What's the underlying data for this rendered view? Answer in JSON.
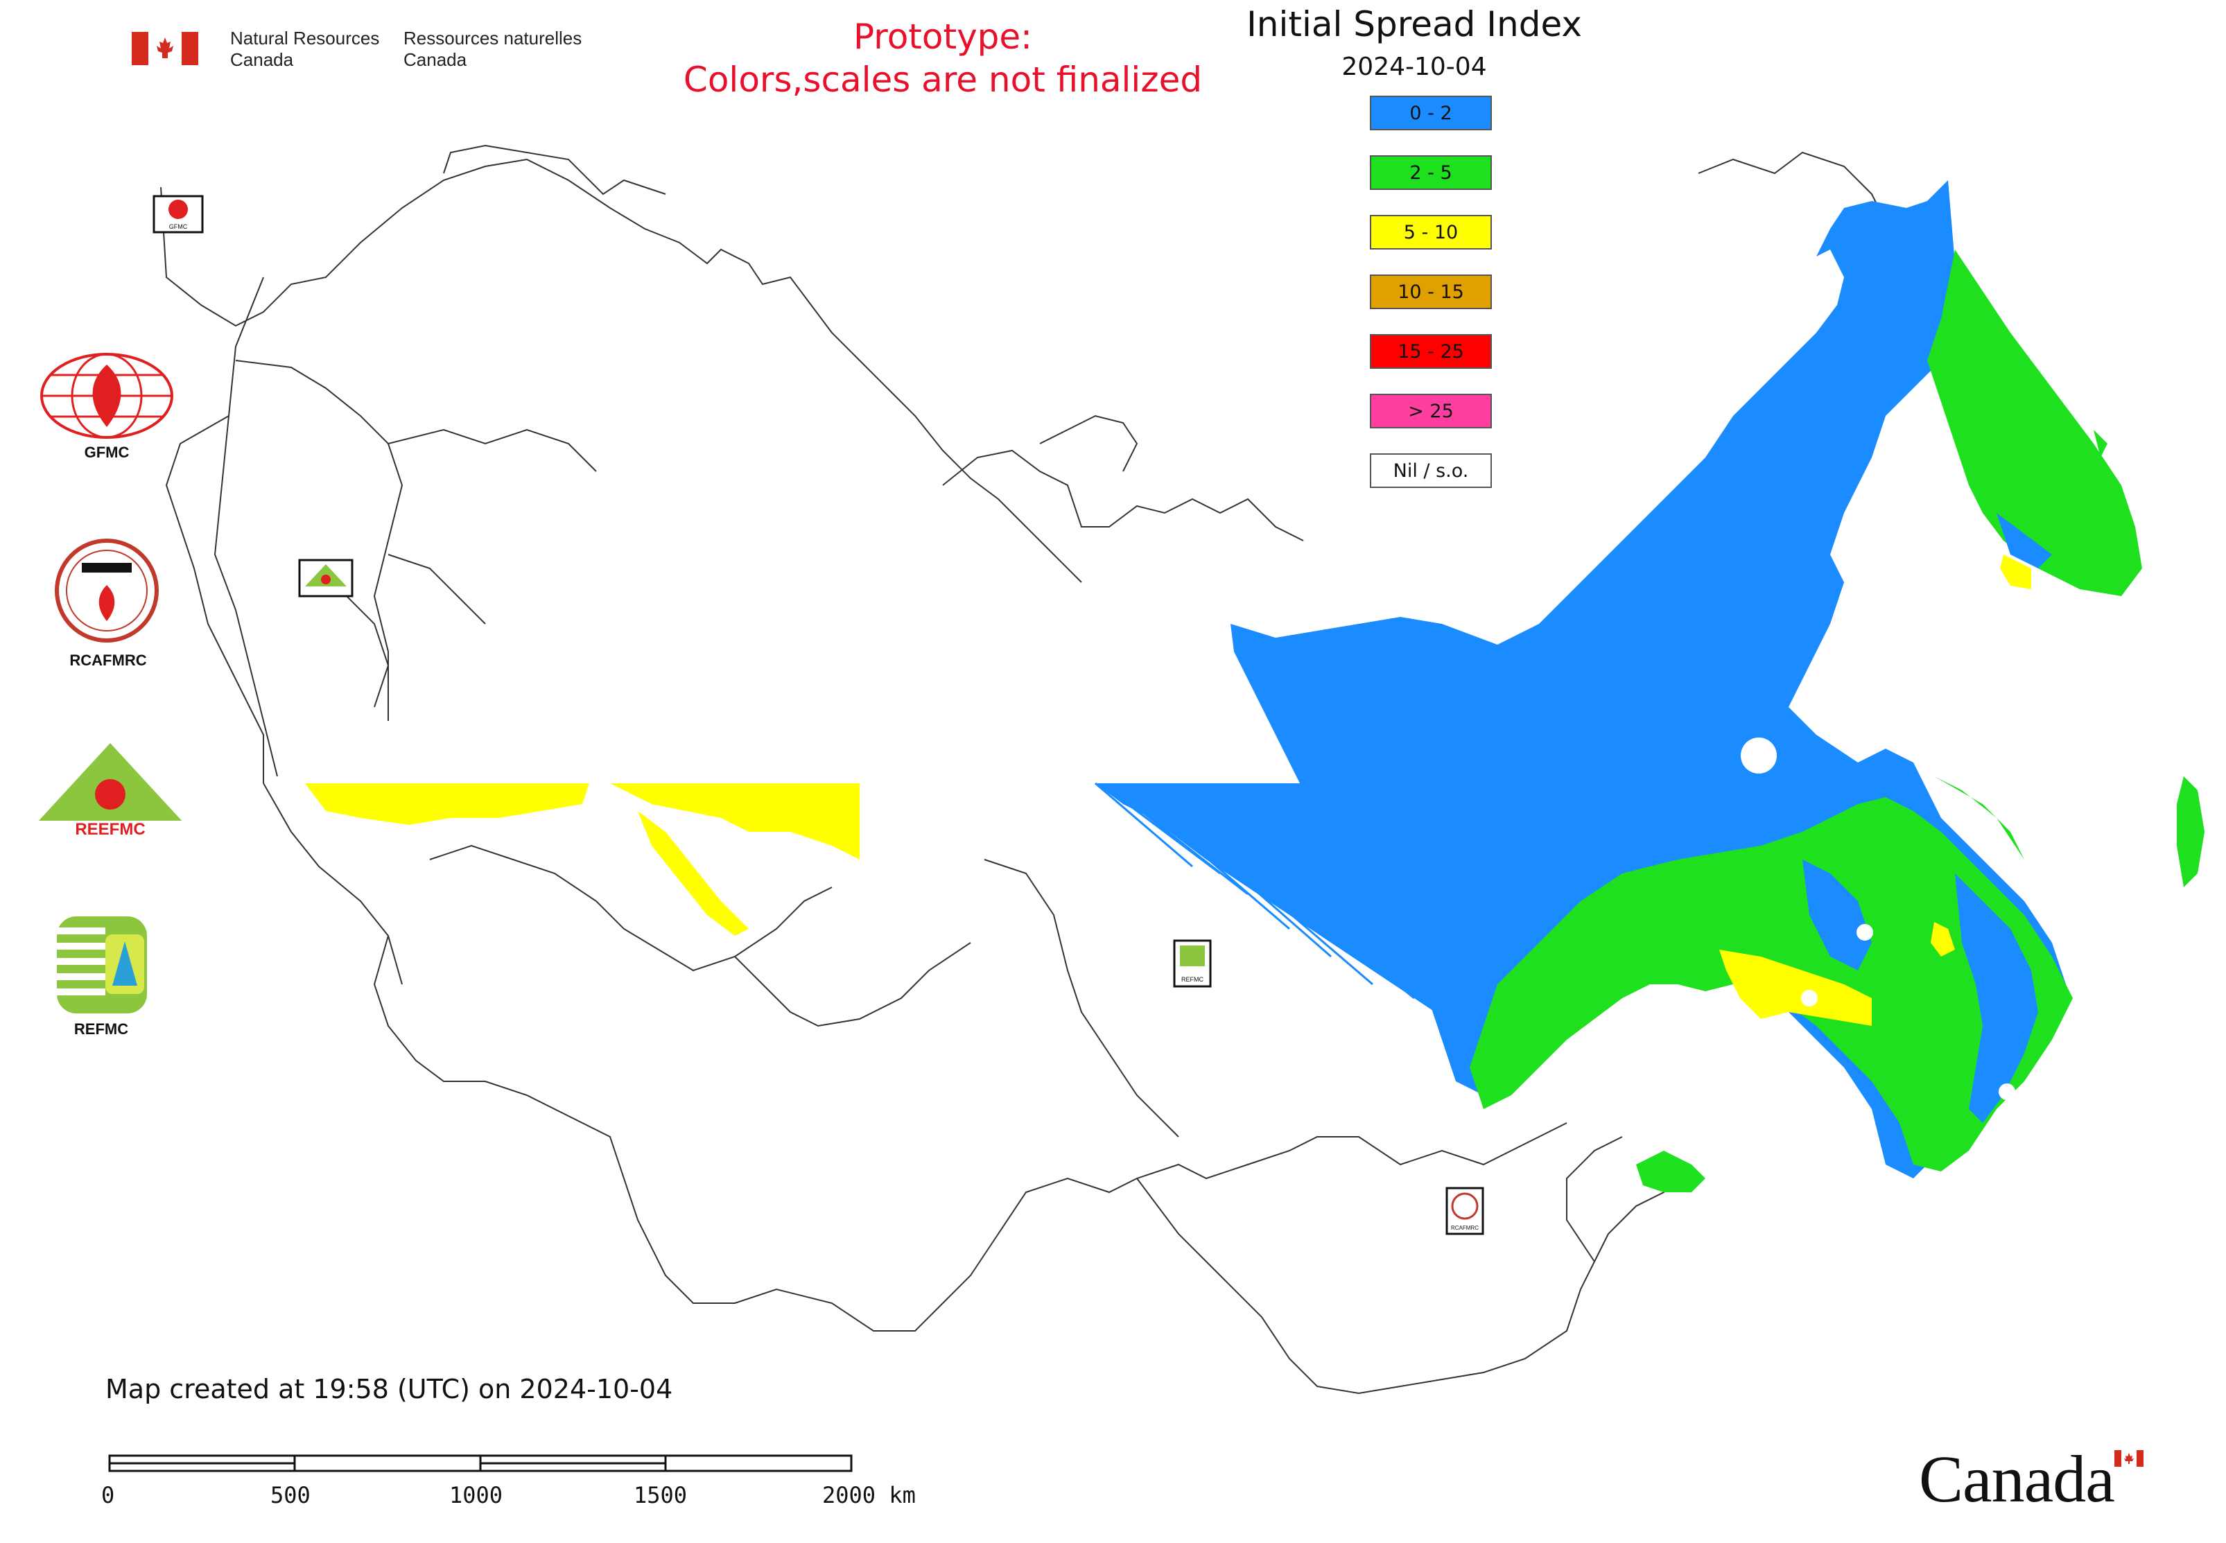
{
  "header": {
    "agency_en_line1": "Natural Resources",
    "agency_en_line2": "Canada",
    "agency_fr_line1": "Ressources naturelles",
    "agency_fr_line2": "Canada",
    "prototype_line1": "Prototype:",
    "prototype_line2": "Colors,scales are not finalized"
  },
  "map": {
    "title": "Initial Spread Index",
    "date": "2024-10-04"
  },
  "legend": {
    "items": [
      {
        "label": "0 - 2",
        "color": "#1a8cff"
      },
      {
        "label": "2 - 5",
        "color": "#1ee01e"
      },
      {
        "label": "5 - 10",
        "color": "#ffff00"
      },
      {
        "label": "10 - 15",
        "color": "#e0a000"
      },
      {
        "label": "15 - 25",
        "color": "#ff0000"
      },
      {
        "label": "> 25",
        "color": "#ff3fa0"
      },
      {
        "label": "Nil / s.o.",
        "color": "#ffffff"
      }
    ]
  },
  "logos": {
    "gfmc": "GFMC",
    "rcafmrc": "RCAFMRC",
    "reefmc": "REEFMC",
    "refmc": "REFMC",
    "reefmc_mark": "REEFMC",
    "rcafmrc_mark": "RCAFMRC"
  },
  "footer": {
    "created": "Map created at 19:58 (UTC) on 2024-10-04",
    "scale_labels": [
      "0",
      "500",
      "1000",
      "1500",
      "2000 km"
    ],
    "wordmark": "Canada"
  },
  "colors": {
    "boundary": "#333333",
    "prototype_text": "#e8102a",
    "flag_red": "#d52b1e"
  }
}
